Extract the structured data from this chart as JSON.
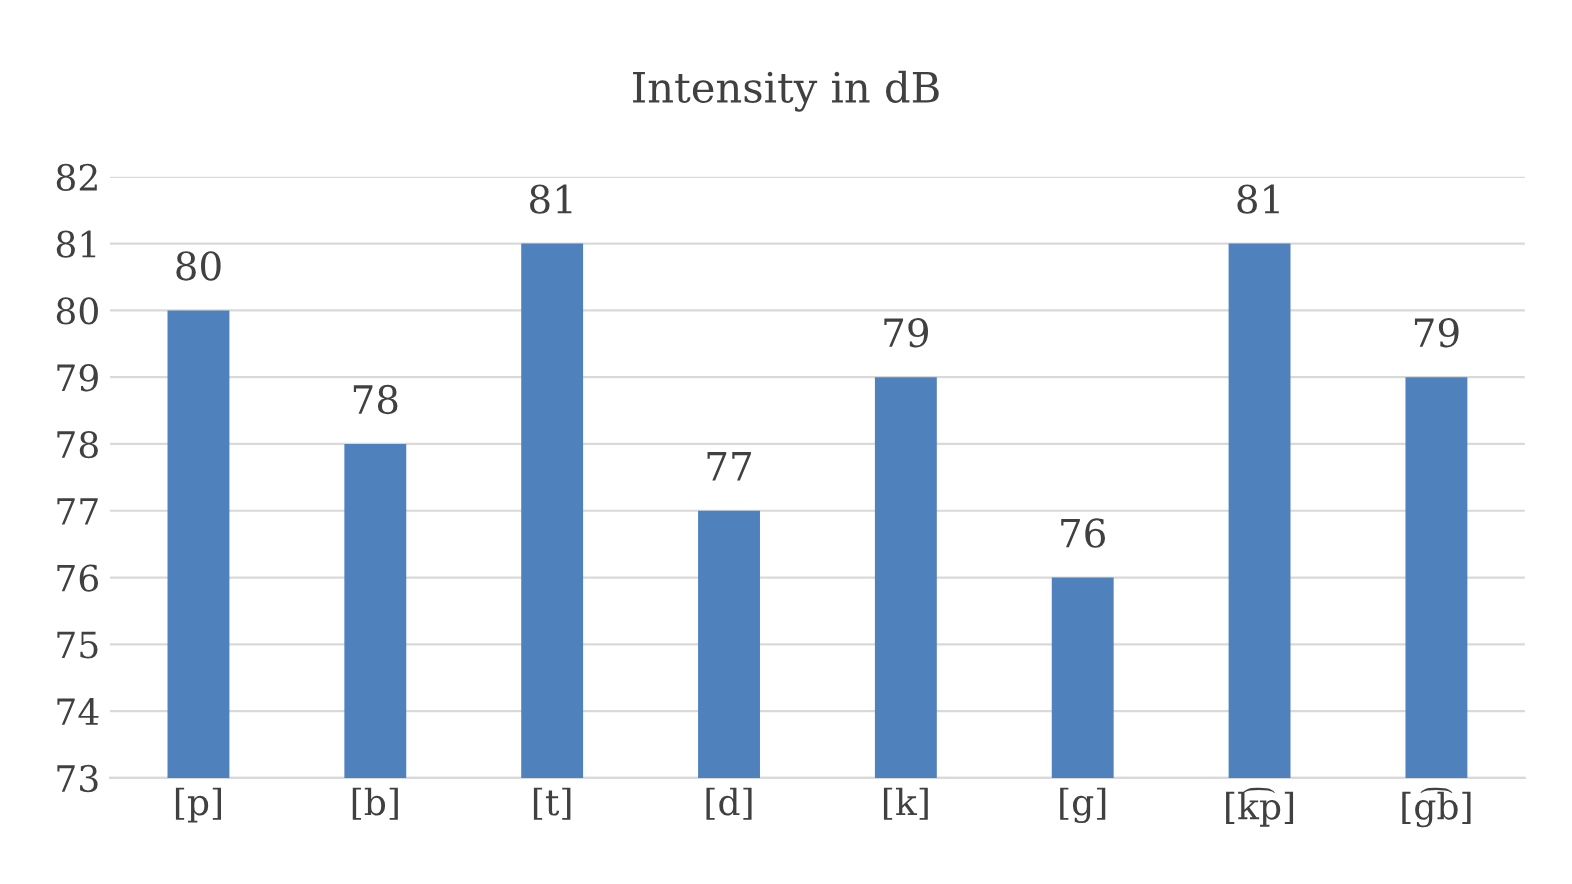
{
  "chart_data": {
    "type": "bar",
    "title": "Intensity in dB",
    "categories": [
      "[p]",
      "[b]",
      "[t]",
      "[d]",
      "[k]",
      "[g]",
      "[k͡p]",
      "[g͡b]"
    ],
    "values": [
      80,
      78,
      81,
      77,
      79,
      76,
      81,
      79
    ],
    "color": "#4f81bd",
    "ylim": [
      73,
      82
    ],
    "yticks": [
      73,
      74,
      75,
      76,
      77,
      78,
      79,
      80,
      81,
      82
    ],
    "grid": "y",
    "data_labels": true
  }
}
